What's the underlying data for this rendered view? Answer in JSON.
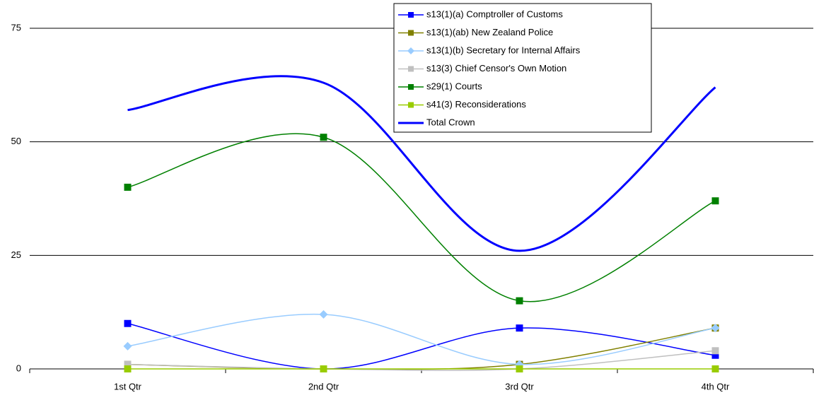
{
  "chart_data": {
    "type": "line",
    "smooth": true,
    "categories": [
      "1st Qtr",
      "2nd Qtr",
      "3rd Qtr",
      "4th Qtr"
    ],
    "series": [
      {
        "name": "s13(1)(a) Comptroller of Customs",
        "color": "#0000ff",
        "marker": "square",
        "values": [
          10,
          0,
          9,
          3
        ]
      },
      {
        "name": "s13(1)(ab) New Zealand Police",
        "color": "#808000",
        "marker": "square",
        "values": [
          1,
          0,
          1,
          9
        ]
      },
      {
        "name": "s13(1)(b) Secretary for Internal Affairs",
        "color": "#99ccff",
        "marker": "diamond",
        "values": [
          5,
          12,
          1,
          9
        ]
      },
      {
        "name": "s13(3) Chief Censor's Own Motion",
        "color": "#c0c0c0",
        "marker": "square",
        "values": [
          1,
          0,
          0,
          4
        ]
      },
      {
        "name": "s29(1) Courts",
        "color": "#008000",
        "marker": "square",
        "values": [
          40,
          51,
          15,
          37
        ]
      },
      {
        "name": "s41(3) Reconsiderations",
        "color": "#99cc00",
        "marker": "square",
        "values": [
          0,
          0,
          0,
          0
        ]
      },
      {
        "name": "Total Crown",
        "color": "#0000ff",
        "marker": null,
        "width": 3,
        "values": [
          57,
          63,
          26,
          62
        ]
      }
    ],
    "ylim": [
      0,
      75
    ],
    "yticks": [
      0,
      25,
      50,
      75
    ],
    "grid": true,
    "legend": "top"
  }
}
